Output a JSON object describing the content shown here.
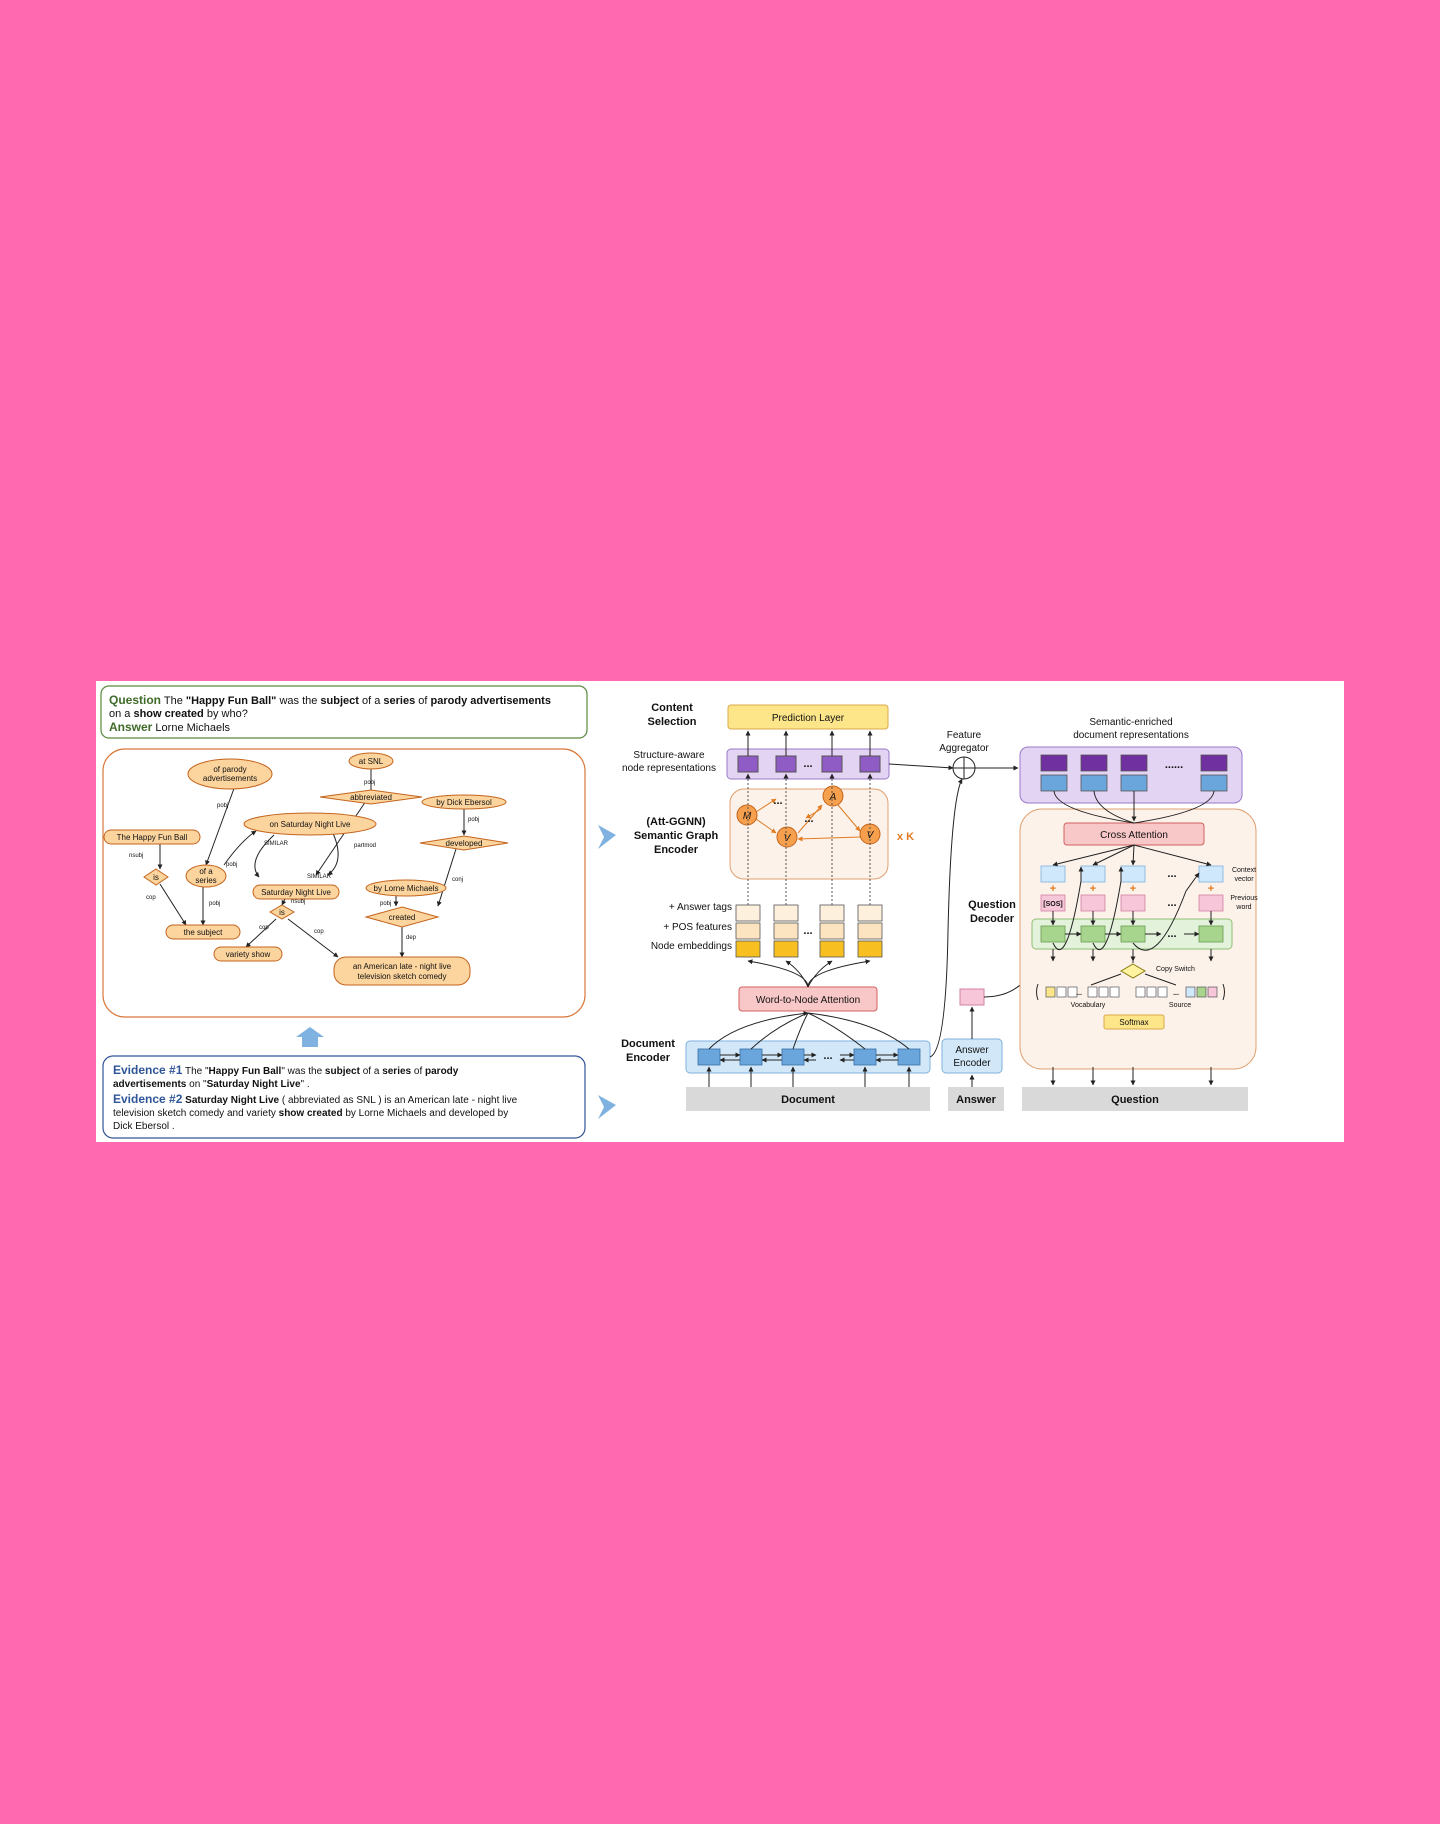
{
  "colors": {
    "page_background": "#ff69b0",
    "figure_background": "#ffffff",
    "node_fill": "#fcd49e",
    "node_stroke": "#c4641d",
    "question_label": "#3f6b2a",
    "evidence_label": "#2f5597",
    "flow_arrow": "#7fb2e0",
    "purple_node": "#8e5cc4",
    "blue_node": "#6aa5dc",
    "green_node": "#a8d58e",
    "pink_node": "#f7c6d9",
    "red_box": "#f8c7c7",
    "yellow_box": "#fde68a"
  },
  "left_panel": {
    "question": {
      "label": "Question",
      "line1": [
        "The ",
        "\"Happy Fun Ball\"",
        " was the ",
        "subject",
        " of a ",
        "series",
        " of ",
        "parody advertisements"
      ],
      "line2": [
        "on a ",
        "show created",
        " by who?"
      ]
    },
    "answer": {
      "label": "Answer",
      "text": "Lorne Michaels"
    },
    "graph": {
      "nodes": {
        "parody_ads": [
          "of parody",
          "advertisements"
        ],
        "at_snl": "at SNL",
        "abbreviated": "abbreviated",
        "by_dick_ebersol": "by Dick Ebersol",
        "happy_fun_ball": "The Happy Fun Ball",
        "on_snl": "on Saturday Night Live",
        "developed": "developed",
        "is_1": "is",
        "of_a_series": [
          "of a",
          "series"
        ],
        "snl": "Saturday Night Live",
        "by_lorne_michaels": "by Lorne Michaels",
        "the_subject": "the subject",
        "is_2": "is",
        "created": "created",
        "variety_show": "variety show",
        "american_late": [
          "an American late - night live",
          "television sketch comedy"
        ]
      },
      "edge_labels": {
        "pobj_1": "pobj",
        "pobj_2": "pobj",
        "pobj_3": "pobj",
        "pobj_4": "pobj",
        "pobj_5": "pobj",
        "pobj_6": "pobj",
        "nsubj_1": "nsubj",
        "nsubj_2": "nsubj",
        "cop_1": "cop",
        "cop_2": "cop",
        "cop_3": "cop",
        "similar_1": "SIMILAR",
        "similar_2": "SIMILAR",
        "partmod": "partmod",
        "conj": "conj",
        "dep": "dep"
      }
    },
    "evidence_1": {
      "label": "Evidence #1",
      "line1": [
        "The \"",
        "Happy Fun Ball",
        "\" was the ",
        "subject",
        " of a ",
        "series",
        " of ",
        "parody"
      ],
      "line2": [
        "advertisements",
        " on \"",
        "Saturday Night Live",
        "\" ."
      ]
    },
    "evidence_2": {
      "label": "Evidence #2",
      "line1": [
        "Saturday Night Live",
        " ( abbreviated as SNL ) is an American late - night live"
      ],
      "line2": [
        "television sketch comedy and variety ",
        "show created",
        " by Lorne Michaels and developed by"
      ],
      "line3": "Dick Ebersol ."
    }
  },
  "right_panel": {
    "content_selection": [
      "Content",
      "Selection"
    ],
    "prediction_layer": "Prediction Layer",
    "structure_aware": [
      "Structure-aware",
      "node representations"
    ],
    "att_ggnn": [
      "(Att-GGNN)",
      "Semantic Graph",
      "Encoder"
    ],
    "xk": "x K",
    "graph_letters": {
      "m": "M",
      "a": "A",
      "v": "V"
    },
    "ellipsis": "...",
    "ellipsis_long": "......",
    "feature_labels": [
      "+ Answer tags",
      "+ POS features",
      "Node embeddings"
    ],
    "word_to_node": "Word-to-Node Attention",
    "document_encoder": [
      "Document",
      "Encoder"
    ],
    "document": "Document",
    "answer_encoder": [
      "Answer",
      "Encoder"
    ],
    "answer": "Answer",
    "feature_aggregator": [
      "Feature",
      "Aggregator"
    ],
    "semantic_enriched": [
      "Semantic-enriched",
      "document representations"
    ],
    "cross_attention": "Cross Attention",
    "question_decoder": [
      "Question",
      "Decoder"
    ],
    "context_vector": [
      "Context",
      "vector"
    ],
    "previous_word": [
      "Previous",
      "word"
    ],
    "sos": "[SOS]",
    "plus": "+",
    "copy_switch": "Copy Switch",
    "vocabulary": "Vocabulary",
    "source": "Source",
    "softmax": "Softmax",
    "question": "Question"
  }
}
